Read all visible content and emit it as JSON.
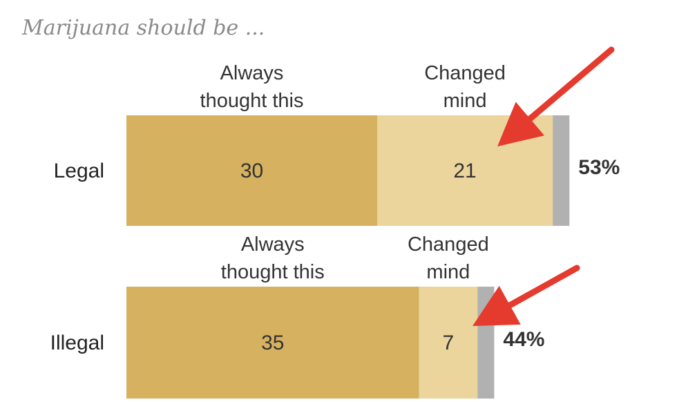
{
  "chart_data": {
    "type": "bar",
    "orientation": "horizontal",
    "stacked": true,
    "title": "Marijuana should be ...",
    "categories": [
      "Legal",
      "Illegal"
    ],
    "series": [
      {
        "name": "Always thought this",
        "values": [
          30,
          35
        ],
        "color": "#d6b15f"
      },
      {
        "name": "Changed mind",
        "values": [
          21,
          7
        ],
        "color": "#ecd59d"
      },
      {
        "name": "",
        "values": [
          2,
          2
        ],
        "color": "#b1b1b1"
      }
    ],
    "totals": [
      "53%",
      "44%"
    ],
    "series_labels": [
      [
        "Always",
        "thought this"
      ],
      [
        "Changed",
        "mind"
      ]
    ],
    "annotations": [
      {
        "type": "arrow",
        "color": "#e53a2e",
        "points_to": "Changed mind"
      }
    ]
  }
}
